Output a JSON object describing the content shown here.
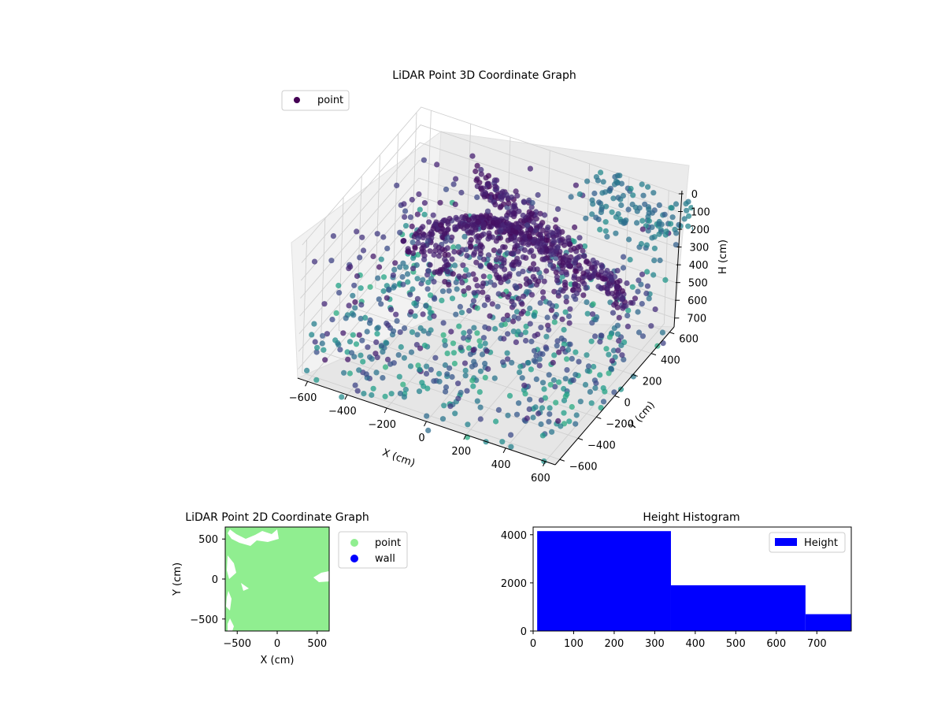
{
  "chart_data": [
    {
      "type": "scatter",
      "title": "LiDAR Point 3D Coordinate Graph",
      "xlabel": "X (cm)",
      "ylabel": "Y (cm)",
      "zlabel": "H (cm)",
      "x_ticks": [
        "−600",
        "−400",
        "−200",
        "0",
        "200",
        "400",
        "600"
      ],
      "y_ticks": [
        "−600",
        "−400",
        "−200",
        "0",
        "200",
        "400",
        "600"
      ],
      "z_ticks": [
        "0",
        "100",
        "200",
        "300",
        "400",
        "500",
        "600",
        "700"
      ],
      "legend": [
        {
          "label": "point",
          "color": "#440154"
        }
      ],
      "legend_position": "upper-left",
      "colormap": "viridis",
      "grid": true,
      "description_values": {
        "x_range": [
          -650,
          650
        ],
        "y_range": [
          -650,
          650
        ],
        "h_range": [
          0,
          750
        ]
      }
    },
    {
      "type": "scatter",
      "title": "LiDAR Point 2D Coordinate Graph",
      "xlabel": "X (cm)",
      "ylabel": "Y (cm)",
      "x_ticks": [
        "−500",
        "0",
        "500"
      ],
      "y_ticks": [
        "500",
        "0",
        "−500"
      ],
      "xlim": [
        -650,
        650
      ],
      "ylim": [
        -650,
        650
      ],
      "legend": [
        {
          "label": "point",
          "color": "#90ee90"
        },
        {
          "label": "wall",
          "color": "#0000ff"
        }
      ],
      "legend_position": "outside-right"
    },
    {
      "type": "bar",
      "title": "Height Histogram",
      "xlabel": "",
      "ylabel": "",
      "x_ticks": [
        "0",
        "100",
        "200",
        "300",
        "400",
        "500",
        "600",
        "700"
      ],
      "y_ticks": [
        "0",
        "2000",
        "4000"
      ],
      "xlim": [
        0,
        785
      ],
      "ylim": [
        0,
        4320
      ],
      "bins": [
        {
          "start": 10,
          "end": 340,
          "count": 4150
        },
        {
          "start": 340,
          "end": 672,
          "count": 1900
        },
        {
          "start": 672,
          "end": 785,
          "count": 700
        }
      ],
      "series": [
        {
          "name": "Height",
          "color": "#0000ff"
        }
      ],
      "legend_position": "upper-right"
    }
  ]
}
